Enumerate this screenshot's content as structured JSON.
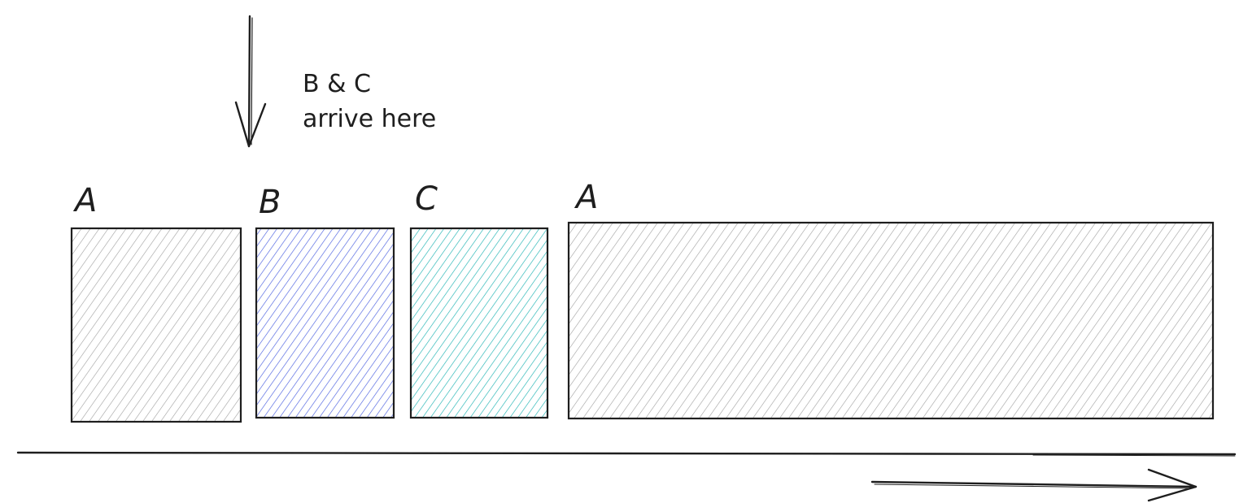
{
  "annotation": {
    "line1": "B & C",
    "line2": "arrive here"
  },
  "blocks": [
    {
      "label": "A",
      "color": "#9e9e9e"
    },
    {
      "label": "B",
      "color": "#4a5fe0"
    },
    {
      "label": "C",
      "color": "#1fb3b3"
    },
    {
      "label": "A",
      "color": "#9e9e9e"
    }
  ],
  "colors": {
    "stroke": "#1e1e1e",
    "background": "#ffffff"
  },
  "icons": {
    "arrival_arrow": "down-arrow-icon",
    "time_arrow": "right-arrow-icon"
  }
}
